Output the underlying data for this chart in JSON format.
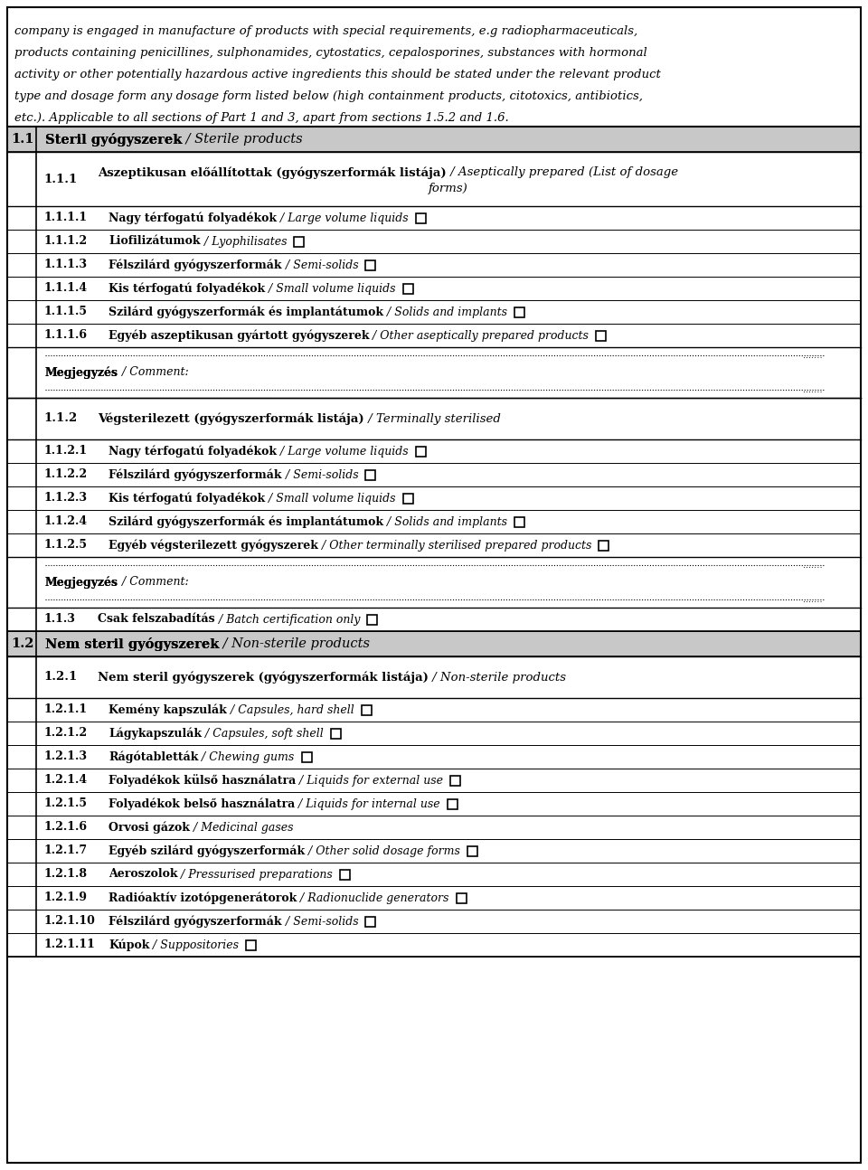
{
  "header_text": "company is engaged in manufacture of products with special requirements, e.g radiopharmaceuticals, products containing penicillines, sulphonamides, cytostatics, cepalosporines, substances with hormonal activity or other potentially hazardous active ingredients this should be stated under the relevant product type and dosage form any dosage form listed below (high containment products, citotoxics, antibiotics, etc.). Applicable to all sections of Part 1 and 3, apart from sections 1.5.2 and 1.6.",
  "bg_color": "#ffffff",
  "section_gray": "#c8c8c8",
  "border_color": "#000000",
  "rows": [
    {
      "type": "section_header",
      "num": "1.1",
      "text_bold": "Steril gyógyszerek",
      "text_italic": " / Sterile products",
      "bg": "#c8c8c8"
    },
    {
      "type": "subsection_header",
      "num": "1.1.1",
      "text_bold": "Aszeptikusan előállítottak (gyógyszerformák listája)",
      "text_italic": " / Aseptically prepared (List of dosage\nforms)",
      "indent": 1
    },
    {
      "type": "item_checkbox",
      "num": "1.1.1.1",
      "text_bold": "Nagy térfogatú folyadékok",
      "text_italic": " / Large volume liquids",
      "checkbox": true
    },
    {
      "type": "item_checkbox",
      "num": "1.1.1.2",
      "text_bold": "Liofilizátumok",
      "text_italic": " / Lyophilisates",
      "checkbox": true
    },
    {
      "type": "item_checkbox",
      "num": "1.1.1.3",
      "text_bold": "Félszilárd gyógyszerformák",
      "text_italic": " / Semi-solids",
      "checkbox": true
    },
    {
      "type": "item_checkbox",
      "num": "1.1.1.4",
      "text_bold": "Kis térfogatú folyadékok",
      "text_italic": " / Small volume liquids",
      "checkbox": true
    },
    {
      "type": "item_checkbox",
      "num": "1.1.1.5",
      "text_bold": "Szilárd gyógyszerformák és implantátumok",
      "text_italic": " / Solids and implants",
      "checkbox": true
    },
    {
      "type": "item_checkbox",
      "num": "1.1.1.6",
      "text_bold": "Egyéb aszeptikusan gyártott gyógyszerek",
      "text_italic": " / Other aseptically prepared products",
      "checkbox": true
    },
    {
      "type": "dotted_comment"
    },
    {
      "type": "subsection_header",
      "num": "1.1.2",
      "text_bold": "Végsterilezett (gyógyszerformák listája)",
      "text_italic": " / Terminally sterilised",
      "indent": 1
    },
    {
      "type": "item_checkbox",
      "num": "1.1.2.1",
      "text_bold": "Nagy térfogatú folyadékok",
      "text_italic": " / Large volume liquids",
      "checkbox": true
    },
    {
      "type": "item_checkbox",
      "num": "1.1.2.2",
      "text_bold": "Félszilárd gyógyszerformák",
      "text_italic": " / Semi-solids",
      "checkbox": true
    },
    {
      "type": "item_checkbox",
      "num": "1.1.2.3",
      "text_bold": "Kis térfogatú folyadékok",
      "text_italic": " / Small volume liquids",
      "checkbox": true
    },
    {
      "type": "item_checkbox",
      "num": "1.1.2.4",
      "text_bold": "Szilárd gyógyszerformák és implantátumok",
      "text_italic": " / Solids and implants",
      "checkbox": true
    },
    {
      "type": "item_checkbox",
      "num": "1.1.2.5",
      "text_bold": "Egyéb végsterilezett gyógyszerek",
      "text_italic": " / Other terminally sterilised prepared products",
      "checkbox": true
    },
    {
      "type": "dotted_comment"
    },
    {
      "type": "item_checkbox_section",
      "num": "1.1.3",
      "text_bold": "Csak felszabadítás",
      "text_italic": " / Batch certification only",
      "checkbox": true
    },
    {
      "type": "section_header",
      "num": "1.2",
      "text_bold": "Nem steril gyógyszerek",
      "text_italic": " / Non-sterile products",
      "bg": "#c8c8c8"
    },
    {
      "type": "subsection_header",
      "num": "1.2.1",
      "text_bold": "Nem steril gyógyszerek (gyógyszerformák listája)",
      "text_italic": " / Non-sterile products",
      "indent": 1
    },
    {
      "type": "item_checkbox",
      "num": "1.2.1.1",
      "text_bold": "Kemény kapszulák",
      "text_italic": " / Capsules, hard shell",
      "checkbox": true
    },
    {
      "type": "item_checkbox",
      "num": "1.2.1.2",
      "text_bold": "Lágykapszulák",
      "text_italic": " / Capsules, soft shell",
      "checkbox": true
    },
    {
      "type": "item_checkbox",
      "num": "1.2.1.3",
      "text_bold": "Rágótabletták",
      "text_italic": " / Chewing gums",
      "checkbox": true
    },
    {
      "type": "item_checkbox",
      "num": "1.2.1.4",
      "text_bold": "Folyadékok külső használatra",
      "text_italic": " / Liquids for external use",
      "checkbox": true
    },
    {
      "type": "item_checkbox",
      "num": "1.2.1.5",
      "text_bold": "Folyadékok belső használatra",
      "text_italic": " / Liquids for internal use",
      "checkbox": true
    },
    {
      "type": "item_checkbox",
      "num": "1.2.1.6",
      "text_bold": "Orvosi gázok",
      "text_italic": " / Medicinal gases",
      "checkbox": false
    },
    {
      "type": "item_checkbox",
      "num": "1.2.1.7",
      "text_bold": "Egyéb szilárd gyógyszerformák",
      "text_italic": " / Other solid dosage forms",
      "checkbox": true
    },
    {
      "type": "item_checkbox",
      "num": "1.2.1.8",
      "text_bold": "Aeroszolok",
      "text_italic": " / Pressurised preparations",
      "checkbox": true
    },
    {
      "type": "item_checkbox",
      "num": "1.2.1.9",
      "text_bold": "Radióaktív izotópgenerátorok",
      "text_italic": " / Radionuclide generators",
      "checkbox": true
    },
    {
      "type": "item_checkbox",
      "num": "1.2.1.10",
      "text_bold": "Félszilárd gyógyszerformák",
      "text_italic": " / Semi-solids",
      "checkbox": true
    },
    {
      "type": "item_checkbox",
      "num": "1.2.1.11",
      "text_bold": "Kúpok",
      "text_italic": " / Suppositories",
      "checkbox": true
    }
  ]
}
